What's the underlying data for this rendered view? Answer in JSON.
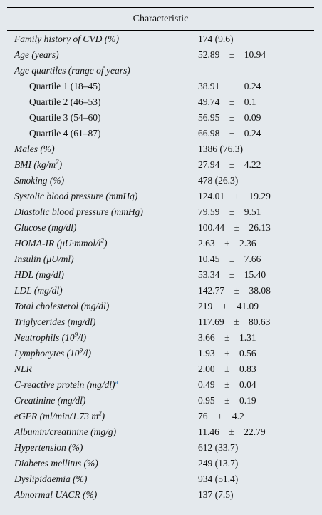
{
  "table": {
    "header": "Characteristic",
    "rows": [
      {
        "label": "Family history of CVD (%)",
        "value": "174 (9.6)"
      },
      {
        "label": "Age (years)",
        "value": "52.89    ±    10.94"
      },
      {
        "label": "Age quartiles (range of years)",
        "value": ""
      },
      {
        "label": "Quartile 1 (18–45)",
        "value": "38.91    ±    0.24",
        "indent": true
      },
      {
        "label": "Quartile 2 (46–53)",
        "value": "49.74    ±    0.1",
        "indent": true
      },
      {
        "label": "Quartile 3 (54–60)",
        "value": "56.95    ±    0.09",
        "indent": true
      },
      {
        "label": "Quartile 4 (61–87)",
        "value": "66.98    ±    0.24",
        "indent": true
      },
      {
        "label": "Males (%)",
        "value": "1386 (76.3)"
      },
      {
        "label": "BMI (kg/m",
        "sup": "2",
        "label_after": ")",
        "value": "27.94    ±    4.22"
      },
      {
        "label": "Smoking (%)",
        "value": "478 (26.3)"
      },
      {
        "label": "Systolic blood pressure (mmHg)",
        "value": "124.01    ±    19.29"
      },
      {
        "label": "Diastolic blood pressure (mmHg)",
        "value": "79.59    ±    9.51"
      },
      {
        "label": "Glucose (mg/dl)",
        "value": "100.44    ±    26.13"
      },
      {
        "label": "HOMA-IR (μU·mmol/l",
        "sup": "2",
        "label_after": ")",
        "value": "2.63    ±    2.36"
      },
      {
        "label": "Insulin (μU/ml)",
        "value": "10.45    ±    7.66"
      },
      {
        "label": "HDL (mg/dl)",
        "value": "53.34    ±    15.40"
      },
      {
        "label": "LDL (mg/dl)",
        "value": "142.77    ±    38.08"
      },
      {
        "label": "Total cholesterol (mg/dl)",
        "value": "219    ±    41.09"
      },
      {
        "label": "Triglycerides (mg/dl)",
        "value": "117.69    ±    80.63"
      },
      {
        "label": "Neutrophils (10",
        "sup": "9",
        "label_after": "/l)",
        "value": "3.66    ±    1.31"
      },
      {
        "label": "Lymphocytes (10",
        "sup": "9",
        "label_after": "/l)",
        "value": "1.93    ±    0.56"
      },
      {
        "label": "NLR",
        "value": "2.00    ±    0.83"
      },
      {
        "label": "C-reactive protein (mg/dl)",
        "note": "a",
        "value": "0.49    ±    0.04"
      },
      {
        "label": "Creatinine (mg/dl)",
        "value": "0.95    ±    0.19"
      },
      {
        "label": "eGFR (ml/min/1.73    m",
        "sup": "2",
        "label_after": ")",
        "value": "76    ±    4.2"
      },
      {
        "label": "Albumin/creatinine (mg/g)",
        "value": "11.46    ±    22.79"
      },
      {
        "label": "Hypertension (%)",
        "value": "612 (33.7)"
      },
      {
        "label": "Diabetes mellitus (%)",
        "value": "249 (13.7)"
      },
      {
        "label": "Dyslipidaemia (%)",
        "value": "934 (51.4)"
      },
      {
        "label": "Abnormal UACR (%)",
        "value": "137 (7.5)"
      }
    ]
  }
}
